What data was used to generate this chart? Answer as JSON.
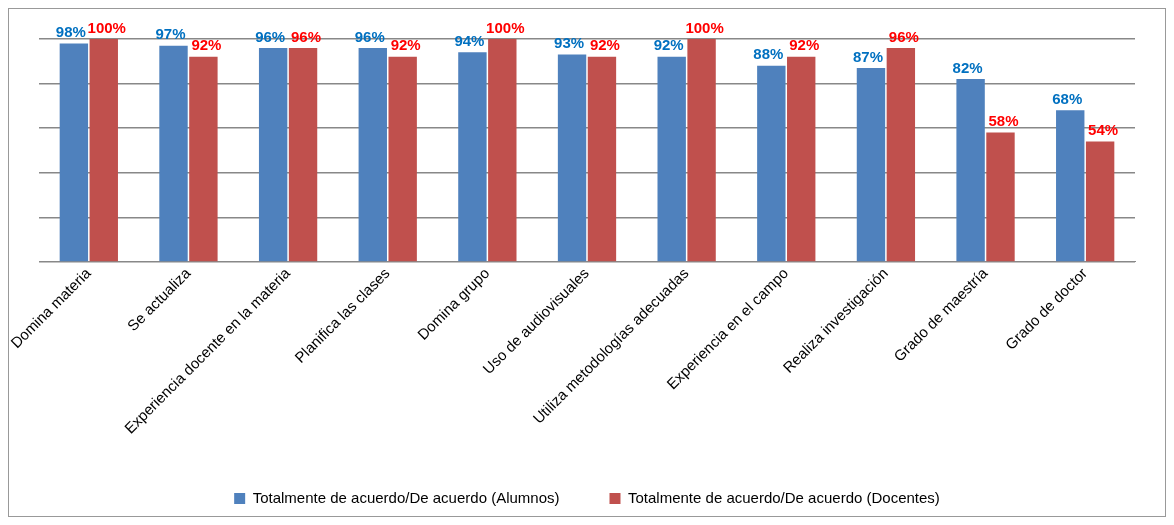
{
  "chart_data": {
    "type": "bar",
    "categories": [
      "Domina materia",
      "Se actualiza",
      "Experiencia docente en la materia",
      "Planifica las clases",
      "Domina grupo",
      "Uso de audiovisuales",
      "Utiliza metodologías adecuadas",
      "Experiencia en el campo",
      "Realiza investigación",
      "Grado de maestría",
      "Grado de doctor"
    ],
    "series": [
      {
        "name": "Totalmente de acuerdo/De acuerdo (Alumnos)",
        "color": "#4f81bd",
        "values": [
          98,
          97,
          96,
          96,
          94,
          93,
          92,
          88,
          87,
          82,
          68
        ],
        "value_labels": [
          "98%",
          "97%",
          "96%",
          "96%",
          "94%",
          "93%",
          "92%",
          "88%",
          "87%",
          "82%",
          "68%"
        ]
      },
      {
        "name": "Totalmente de acuerdo/De acuerdo (Docentes)",
        "color": "#c0504d",
        "values": [
          100,
          92,
          96,
          92,
          100,
          92,
          100,
          92,
          96,
          58,
          54
        ],
        "value_labels": [
          "100%",
          "92%",
          "96%",
          "92%",
          "100%",
          "92%",
          "100%",
          "92%",
          "96%",
          "58%",
          "54%"
        ]
      }
    ],
    "ylim": [
      0,
      100
    ],
    "yticks": [
      {
        "value": 0,
        "label": null
      },
      {
        "value": 20,
        "label": null
      },
      {
        "value": 40,
        "label": null
      },
      {
        "value": 60,
        "label": null
      },
      {
        "value": 80,
        "label": null
      },
      {
        "value": 100,
        "label": null
      }
    ],
    "grid": "y",
    "legend": "bottom",
    "tick_labels": "x"
  }
}
